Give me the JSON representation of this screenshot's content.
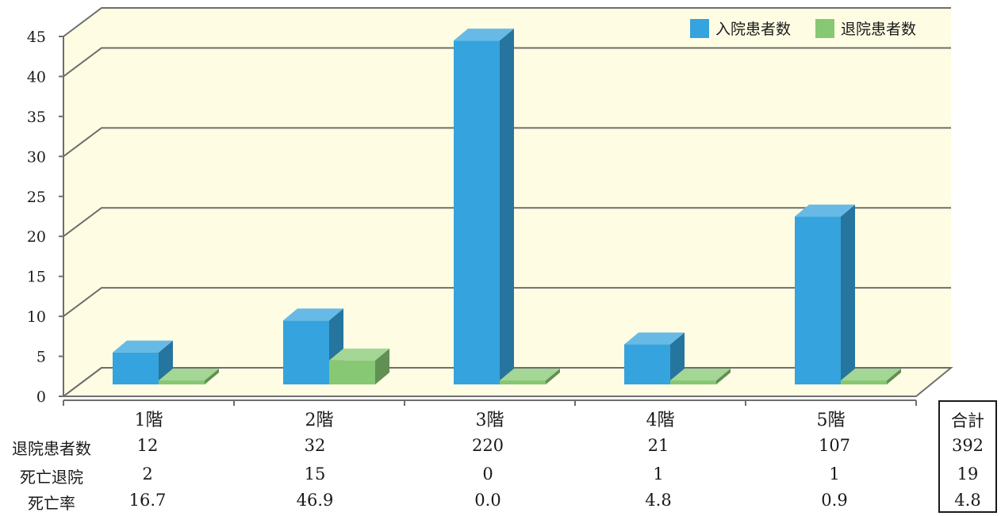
{
  "chart_data": {
    "type": "bar",
    "categories": [
      "1階",
      "2階",
      "3階",
      "4階",
      "5階"
    ],
    "series": [
      {
        "name": "入院患者数",
        "values": [
          4,
          8,
          43,
          5,
          21
        ],
        "color": "#35a3dd"
      },
      {
        "name": "退院患者数",
        "values": [
          0.5,
          3,
          0.5,
          0.5,
          0.5
        ],
        "color": "#86c873"
      }
    ],
    "ylim": [
      0,
      45
    ],
    "yticks": [
      "0",
      "5",
      "10",
      "15",
      "20",
      "25",
      "30",
      "35",
      "40",
      "45"
    ],
    "grid": true,
    "legend": "top-right",
    "background": "#fefde3"
  },
  "table": {
    "rows": [
      {
        "label": "退院患者数",
        "values": [
          "12",
          "32",
          "220",
          "21",
          "107"
        ],
        "total": "392"
      },
      {
        "label": "死亡退院",
        "values": [
          "2",
          "15",
          "0",
          "1",
          "1"
        ],
        "total": "19"
      },
      {
        "label": "死亡率",
        "values": [
          "16.7",
          "46.9",
          "0.0",
          "4.8",
          "0.9"
        ],
        "total": "4.8"
      }
    ],
    "total_header": "合計"
  }
}
